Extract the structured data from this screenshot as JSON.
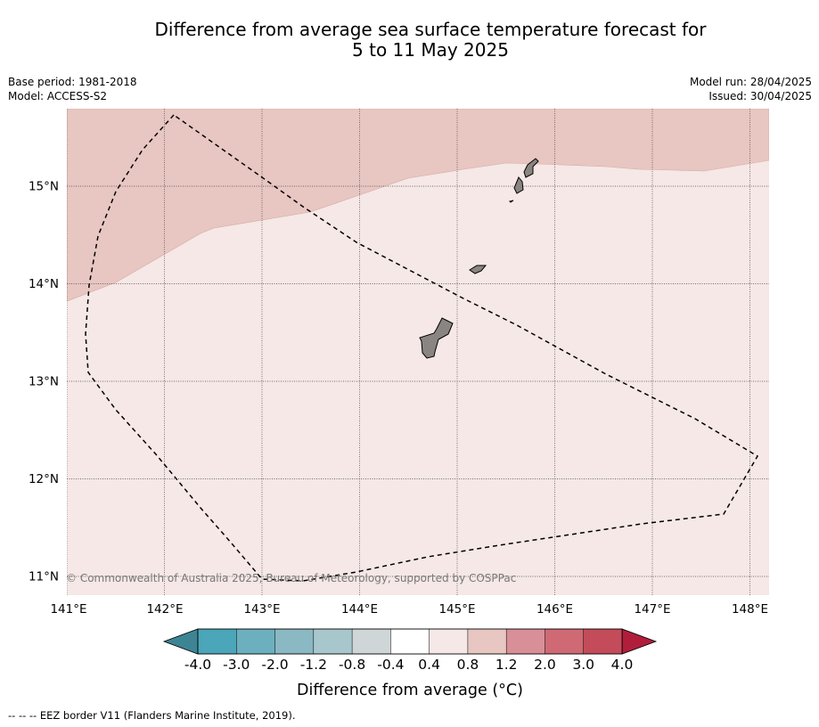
{
  "title": {
    "line1": "Difference from average sea surface temperature forecast for",
    "line2": "5 to 11 May 2025"
  },
  "info_left": {
    "base_period": "Base period: 1981-2018",
    "model": "Model: ACCESS-S2"
  },
  "info_right": {
    "model_run": "Model run: 28/04/2025",
    "issued": "Issued: 30/04/2025"
  },
  "map": {
    "lon_range": [
      141.0,
      148.2
    ],
    "lat_range": [
      10.8,
      15.8
    ],
    "lon_ticks": [
      "141°E",
      "142°E",
      "143°E",
      "144°E",
      "145°E",
      "146°E",
      "147°E",
      "148°E"
    ],
    "lat_ticks": [
      "15°N",
      "14°N",
      "13°N",
      "12°N",
      "11°N"
    ],
    "copyright": "© Commonwealth of Australia 2025, Bureau of Meteorology, supported by COSPPac",
    "colors": {
      "band_0p8_1p2": "#e8c6c1",
      "band_0p4_0p8": "#f5e8e6",
      "land": "#8a8581"
    }
  },
  "colorbar": {
    "labels": [
      "-4.0",
      "-3.0",
      "-2.0",
      "-1.2",
      "-0.8",
      "-0.4",
      "0.4",
      "0.8",
      "1.2",
      "2.0",
      "3.0",
      "4.0"
    ],
    "colors": [
      "#4aa6b8",
      "#6cb0bf",
      "#8ab8c3",
      "#a8c7cc",
      "#cfd6d8",
      "#ffffff",
      "#f5e8e6",
      "#e8c6c1",
      "#d98f98",
      "#cf6a75",
      "#c44c5a"
    ],
    "low_color": "#3d8594",
    "high_color": "#b01e3c",
    "title": "Difference from average (°C)"
  },
  "footer": "--  --  -- EEZ border V11 (Flanders Marine Institute, 2019)."
}
